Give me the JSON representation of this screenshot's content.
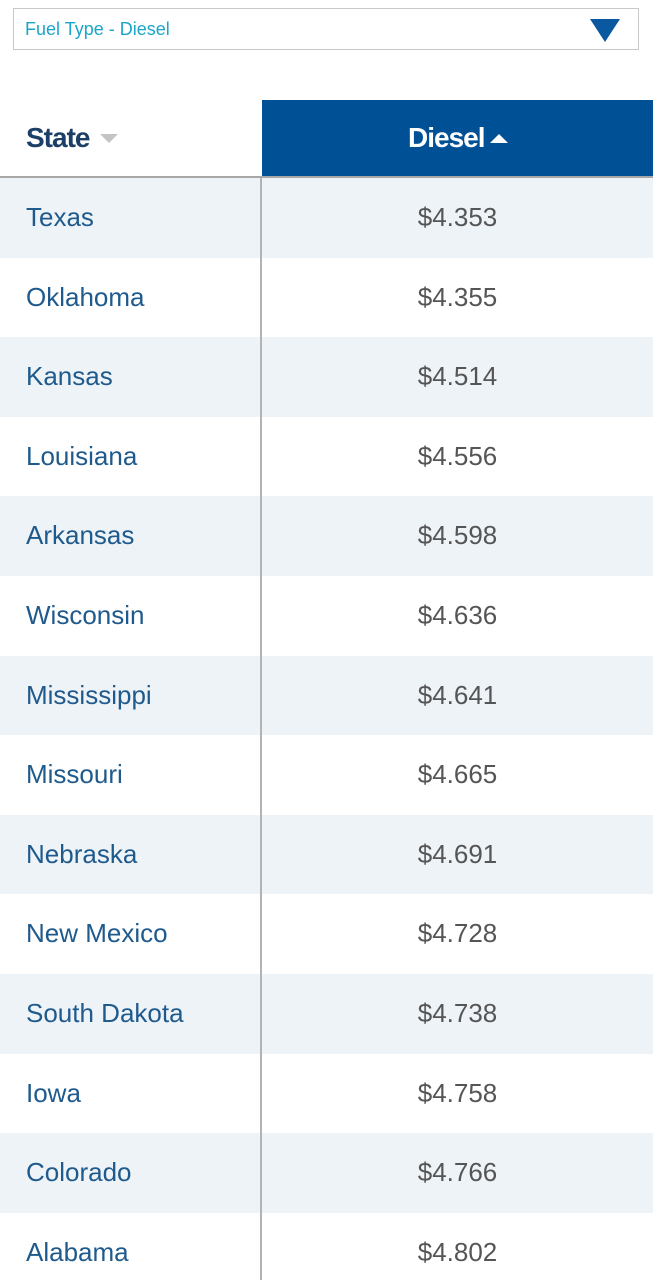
{
  "dropdown": {
    "label": "Fuel Type - Diesel"
  },
  "table": {
    "headers": [
      "State",
      "Diesel"
    ],
    "rows": [
      [
        "Texas",
        "$4.353"
      ],
      [
        "Oklahoma",
        "$4.355"
      ],
      [
        "Kansas",
        "$4.514"
      ],
      [
        "Louisiana",
        "$4.556"
      ],
      [
        "Arkansas",
        "$4.598"
      ],
      [
        "Wisconsin",
        "$4.636"
      ],
      [
        "Mississippi",
        "$4.641"
      ],
      [
        "Missouri",
        "$4.665"
      ],
      [
        "Nebraska",
        "$4.691"
      ],
      [
        "New Mexico",
        "$4.728"
      ],
      [
        "South Dakota",
        "$4.738"
      ],
      [
        "Iowa",
        "$4.758"
      ],
      [
        "Colorado",
        "$4.766"
      ],
      [
        "Alabama",
        "$4.802"
      ]
    ]
  }
}
